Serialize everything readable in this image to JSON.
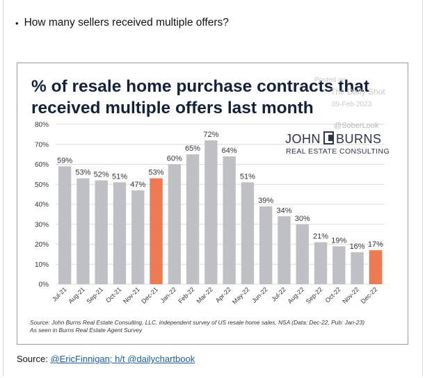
{
  "question": {
    "bullet": "•",
    "text": "How many sellers received multiple offers?"
  },
  "source_line": {
    "label": "Source:",
    "link": "@EricFinnigan; h/t @dailychartbook"
  },
  "watermark": {
    "line1": "Posted on",
    "line2": "The Daily Shot",
    "date": "09-Feb-2023",
    "handle": "@SoberLook"
  },
  "logo": {
    "text_left": "JOHN",
    "text_right": "BURNS",
    "subtitle": "REAL ESTATE CONSULTING"
  },
  "colors": {
    "bar_default": "#bfc0c6",
    "bar_highlight": "#ee7a54",
    "title": "#14213d",
    "grid": "#dcdcdc"
  },
  "chart_data": {
    "type": "bar",
    "title_lines": [
      "% of resale home purchase contracts that",
      "received multiple offers last month"
    ],
    "categories": [
      "Jul-21",
      "Aug-21",
      "Sep-21",
      "Oct-21",
      "Nov-21",
      "Dec-21",
      "Jan-22",
      "Feb-22",
      "Mar-22",
      "Apr-22",
      "May-22",
      "Jun-22",
      "Jul-22",
      "Aug-22",
      "Sep-22",
      "Oct-22",
      "Nov-22",
      "Dec-22"
    ],
    "values": [
      59,
      53,
      52,
      51,
      47,
      53,
      60,
      65,
      72,
      64,
      51,
      39,
      34,
      30,
      21,
      19,
      16,
      17
    ],
    "data_labels": [
      "59%",
      "53%",
      "52%",
      "51%",
      "47%",
      "53%",
      "60%",
      "65%",
      "72%",
      "64%",
      "51%",
      "39%",
      "34%",
      "30%",
      "21%",
      "19%",
      "16%",
      "17%"
    ],
    "highlighted": [
      "Dec-21",
      "Dec-22"
    ],
    "ylim": [
      0,
      80
    ],
    "yticks": [
      0,
      10,
      20,
      30,
      40,
      50,
      60,
      70,
      80
    ],
    "ytick_labels": [
      "0%",
      "10%",
      "20%",
      "30%",
      "40%",
      "50%",
      "60%",
      "70%",
      "80%"
    ],
    "grid": true,
    "xlabel": "",
    "ylabel": "",
    "source_note_lines": [
      "Source: John Burns Real Estate Consulting, LLC, independent survey of US resale home sales, NSA (Data: Dec-22, Pub: Jan-23)",
      "As seen in Burns Real Estate Agent Survey"
    ]
  }
}
